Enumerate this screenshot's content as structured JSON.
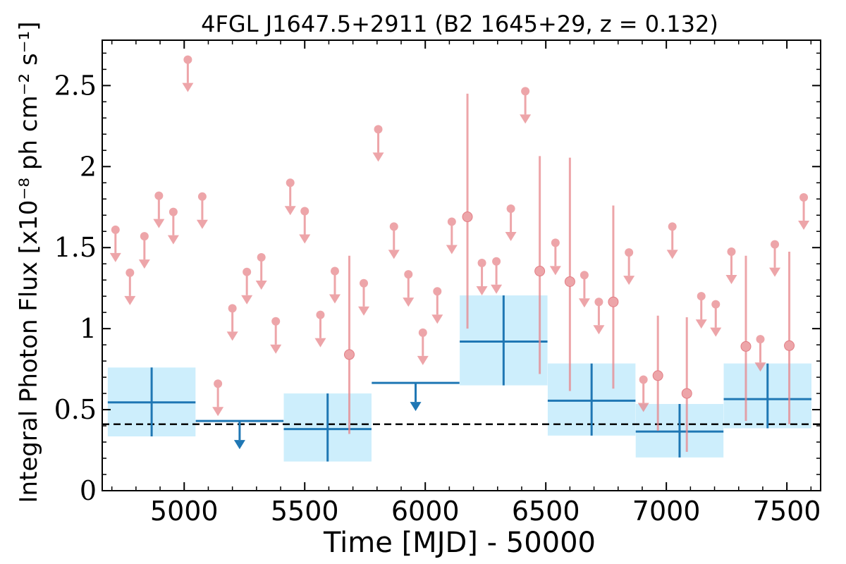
{
  "chart_data": {
    "type": "scatter",
    "title": "4FGL J1647.5+2911 (B2 1645+29, z = 0.132)",
    "xlabel": "Time [MJD] - 50000",
    "ylabel": "Integral Photon Flux [x10⁻⁸ ph cm⁻² s⁻¹]",
    "xlim": [
      4660,
      7640
    ],
    "ylim": [
      0,
      2.78
    ],
    "xticks": [
      5000,
      5500,
      6000,
      6500,
      7000,
      7500
    ],
    "xtick_labels": [
      "5000",
      "5500",
      "6000",
      "6500",
      "7000",
      "7500"
    ],
    "yticks": [
      0,
      0.5,
      1,
      1.5,
      2,
      2.5
    ],
    "ytick_labels": [
      "0",
      "0.5",
      "1",
      "1.5",
      "2",
      "2.5"
    ],
    "grid": false,
    "colors": {
      "fine_bins": "#e8878d",
      "coarse_bins": "#1f77b4",
      "coarse_band": "#cdeefc",
      "baseline": "#000000"
    },
    "baseline_flux": 0.41,
    "coarse_bins": [
      {
        "x": 4865,
        "xerr": 182,
        "y": 0.545,
        "ylo": 0.335,
        "yhi": 0.76,
        "upper_limit": false
      },
      {
        "x": 5230,
        "xerr": 182,
        "y": 0.43,
        "upper_limit": true
      },
      {
        "x": 5595,
        "xerr": 182,
        "y": 0.38,
        "ylo": 0.18,
        "yhi": 0.6,
        "upper_limit": false
      },
      {
        "x": 5960,
        "xerr": 182,
        "y": 0.665,
        "upper_limit": true
      },
      {
        "x": 6325,
        "xerr": 182,
        "y": 0.92,
        "ylo": 0.65,
        "yhi": 1.205,
        "upper_limit": false
      },
      {
        "x": 6690,
        "xerr": 182,
        "y": 0.555,
        "ylo": 0.34,
        "yhi": 0.785,
        "upper_limit": false
      },
      {
        "x": 7055,
        "xerr": 182,
        "y": 0.365,
        "ylo": 0.205,
        "yhi": 0.535,
        "upper_limit": false
      },
      {
        "x": 7420,
        "xerr": 182,
        "y": 0.565,
        "ylo": 0.385,
        "yhi": 0.785,
        "upper_limit": false
      }
    ],
    "fine_bins": [
      {
        "x": 4715,
        "y": 1.61,
        "upper_limit": true
      },
      {
        "x": 4775,
        "y": 1.345,
        "upper_limit": true
      },
      {
        "x": 4835,
        "y": 1.57,
        "upper_limit": true
      },
      {
        "x": 4895,
        "y": 1.82,
        "upper_limit": true
      },
      {
        "x": 4955,
        "y": 1.72,
        "upper_limit": true
      },
      {
        "x": 5015,
        "y": 2.66,
        "upper_limit": true
      },
      {
        "x": 5075,
        "y": 1.815,
        "upper_limit": true
      },
      {
        "x": 5140,
        "y": 0.66,
        "upper_limit": true
      },
      {
        "x": 5200,
        "y": 1.125,
        "upper_limit": true
      },
      {
        "x": 5260,
        "y": 1.35,
        "upper_limit": true
      },
      {
        "x": 5320,
        "y": 1.44,
        "upper_limit": true
      },
      {
        "x": 5380,
        "y": 1.045,
        "upper_limit": true
      },
      {
        "x": 5440,
        "y": 1.9,
        "upper_limit": true
      },
      {
        "x": 5500,
        "y": 1.725,
        "upper_limit": true
      },
      {
        "x": 5565,
        "y": 1.085,
        "upper_limit": true
      },
      {
        "x": 5625,
        "y": 1.355,
        "upper_limit": true
      },
      {
        "x": 5685,
        "y": 0.84,
        "ylo": 0.35,
        "yhi": 1.45,
        "upper_limit": false
      },
      {
        "x": 5745,
        "y": 1.28,
        "upper_limit": true
      },
      {
        "x": 5805,
        "y": 2.23,
        "upper_limit": true
      },
      {
        "x": 5870,
        "y": 1.63,
        "upper_limit": true
      },
      {
        "x": 5930,
        "y": 1.335,
        "upper_limit": true
      },
      {
        "x": 5990,
        "y": 0.975,
        "upper_limit": true
      },
      {
        "x": 6050,
        "y": 1.23,
        "upper_limit": true
      },
      {
        "x": 6110,
        "y": 1.66,
        "upper_limit": true
      },
      {
        "x": 6175,
        "y": 1.69,
        "ylo": 1.0,
        "yhi": 2.45,
        "upper_limit": false
      },
      {
        "x": 6235,
        "y": 1.405,
        "upper_limit": true
      },
      {
        "x": 6295,
        "y": 1.415,
        "upper_limit": true
      },
      {
        "x": 6355,
        "y": 1.74,
        "upper_limit": true
      },
      {
        "x": 6415,
        "y": 2.465,
        "upper_limit": true
      },
      {
        "x": 6475,
        "y": 1.355,
        "ylo": 0.72,
        "yhi": 2.065,
        "upper_limit": false
      },
      {
        "x": 6540,
        "y": 1.53,
        "upper_limit": true
      },
      {
        "x": 6600,
        "y": 1.29,
        "ylo": 0.615,
        "yhi": 2.055,
        "upper_limit": false
      },
      {
        "x": 6660,
        "y": 1.33,
        "upper_limit": true
      },
      {
        "x": 6720,
        "y": 1.165,
        "upper_limit": true
      },
      {
        "x": 6780,
        "y": 1.165,
        "ylo": 0.63,
        "yhi": 1.76,
        "upper_limit": false
      },
      {
        "x": 6845,
        "y": 1.47,
        "upper_limit": true
      },
      {
        "x": 6905,
        "y": 0.685,
        "upper_limit": true
      },
      {
        "x": 6965,
        "y": 0.71,
        "ylo": 0.37,
        "yhi": 1.08,
        "upper_limit": false
      },
      {
        "x": 7025,
        "y": 1.63,
        "upper_limit": true
      },
      {
        "x": 7085,
        "y": 0.6,
        "ylo": 0.24,
        "yhi": 1.07,
        "upper_limit": false
      },
      {
        "x": 7145,
        "y": 1.2,
        "upper_limit": true
      },
      {
        "x": 7205,
        "y": 1.15,
        "upper_limit": true
      },
      {
        "x": 7270,
        "y": 1.475,
        "upper_limit": true
      },
      {
        "x": 7330,
        "y": 0.89,
        "ylo": 0.43,
        "yhi": 1.45,
        "upper_limit": false
      },
      {
        "x": 7390,
        "y": 0.935,
        "upper_limit": true
      },
      {
        "x": 7450,
        "y": 1.52,
        "upper_limit": true
      },
      {
        "x": 7510,
        "y": 0.895,
        "ylo": 0.41,
        "yhi": 1.475,
        "upper_limit": false
      },
      {
        "x": 7570,
        "y": 1.81,
        "upper_limit": true
      }
    ]
  }
}
